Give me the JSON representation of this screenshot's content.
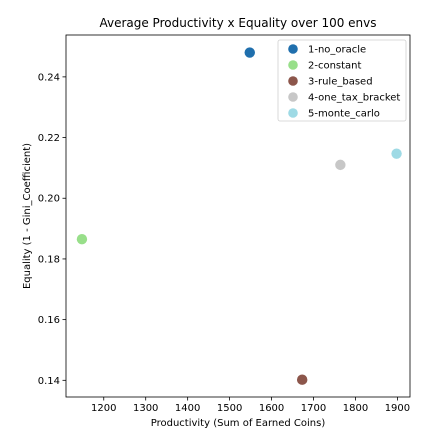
{
  "chart_data": {
    "type": "scatter",
    "title": "Average Productivity x Equality over 100 envs",
    "xlabel": "Productivity (Sum of Earned Coins)",
    "ylabel": "Equality (1 - Gini_Coefficient)",
    "xlim": [
      1110,
      1930
    ],
    "ylim": [
      0.1345,
      0.2538
    ],
    "xticks": [
      1200,
      1300,
      1400,
      1500,
      1600,
      1700,
      1800,
      1900
    ],
    "yticks": [
      0.14,
      0.16,
      0.18,
      0.2,
      0.22,
      0.24
    ],
    "grid": false,
    "legend_position": "top-right",
    "series": [
      {
        "name": "1-no_oracle",
        "color": "#1f6fad",
        "x": [
          1548
        ],
        "y": [
          0.248
        ]
      },
      {
        "name": "2-constant",
        "color": "#98df8a",
        "x": [
          1148
        ],
        "y": [
          0.1865
        ]
      },
      {
        "name": "3-rule_based",
        "color": "#8c564b",
        "x": [
          1673
        ],
        "y": [
          0.1402
        ]
      },
      {
        "name": "4-one_tax_bracket",
        "color": "#c7c7c7",
        "x": [
          1764
        ],
        "y": [
          0.211
        ]
      },
      {
        "name": "5-monte_carlo",
        "color": "#9edae5",
        "x": [
          1898
        ],
        "y": [
          0.2147
        ]
      }
    ]
  }
}
